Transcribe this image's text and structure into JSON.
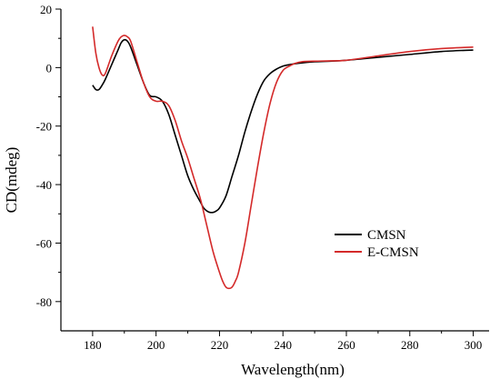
{
  "chart_data": {
    "type": "line",
    "title": "",
    "xlabel": "Wavelength(nm)",
    "ylabel": "CD(mdeg)",
    "xlim": [
      170,
      305
    ],
    "ylim": [
      -90,
      20
    ],
    "xticks": [
      180,
      200,
      220,
      240,
      260,
      280,
      300
    ],
    "yticks": [
      20,
      0,
      -20,
      -40,
      -60,
      -80
    ],
    "grid": false,
    "legend_position": "center-right",
    "series": [
      {
        "name": "CMSN",
        "color": "#000000",
        "x": [
          180,
          181,
          182,
          183,
          184,
          186,
          188,
          189,
          190,
          191,
          192,
          194,
          196,
          198,
          200,
          202,
          204,
          206,
          208,
          210,
          212,
          214,
          215,
          216,
          217,
          218,
          219,
          220,
          222,
          224,
          226,
          228,
          230,
          232,
          234,
          236,
          238,
          240,
          242,
          245,
          250,
          255,
          260,
          265,
          270,
          280,
          290,
          300
        ],
        "y": [
          -6,
          -7.5,
          -7.5,
          -6,
          -4,
          1,
          6,
          8.5,
          9.5,
          9,
          7,
          1,
          -5,
          -9.5,
          -10,
          -11.5,
          -16,
          -23,
          -30,
          -37,
          -42,
          -46,
          -48,
          -49,
          -49.5,
          -49.5,
          -49,
          -48,
          -44,
          -37,
          -30,
          -22,
          -15,
          -9,
          -4.5,
          -2,
          -0.5,
          0.5,
          1,
          1.5,
          2,
          2.2,
          2.5,
          3,
          3.5,
          4.5,
          5.5,
          6
        ]
      },
      {
        "name": "E-CMSN",
        "color": "#d42a2a",
        "x": [
          180,
          181,
          182,
          183,
          184,
          186,
          188,
          189,
          190,
          191,
          192,
          194,
          196,
          198,
          200,
          202,
          204,
          206,
          208,
          210,
          212,
          214,
          216,
          218,
          220,
          221,
          222,
          223,
          224,
          225,
          226,
          228,
          230,
          232,
          234,
          236,
          238,
          240,
          242,
          244,
          246,
          250,
          255,
          260,
          270,
          280,
          290,
          300
        ],
        "y": [
          14,
          5,
          0,
          -2.5,
          -2,
          4,
          9,
          10.5,
          11,
          10.5,
          9,
          2,
          -5,
          -10,
          -11.5,
          -11.5,
          -13,
          -18,
          -25,
          -31,
          -38,
          -45,
          -54,
          -63,
          -70,
          -73,
          -75,
          -75.5,
          -75,
          -73,
          -70,
          -60,
          -47,
          -34,
          -22,
          -12,
          -5,
          -1,
          0.5,
          1.5,
          2,
          2.2,
          2.3,
          2.5,
          4,
          5.5,
          6.5,
          7
        ]
      }
    ]
  }
}
